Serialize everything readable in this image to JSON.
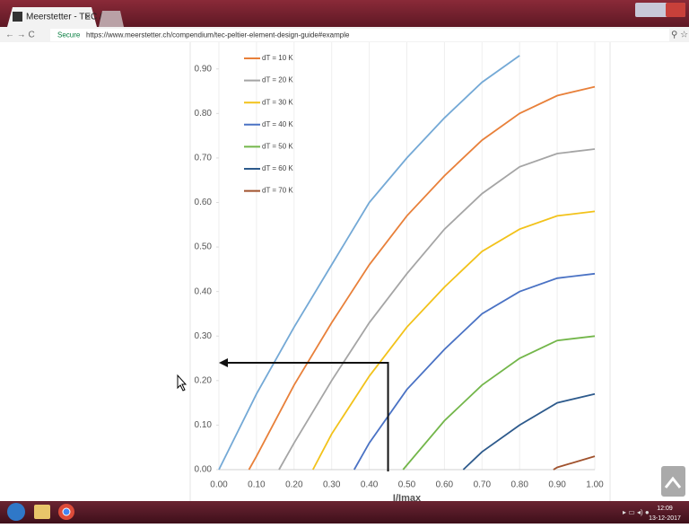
{
  "browser": {
    "tab_title": "Meerstetter - TEC / ",
    "tab_close": "×",
    "secure": "Secure",
    "url": "https://www.meerstetter.ch/compendium/tec-peltier-element-design-guide#example",
    "clock_time": "12:09",
    "clock_date": "13-12-2017"
  },
  "chart_data": {
    "type": "line",
    "x_label": "I/Imax",
    "xlim": [
      0,
      1
    ],
    "ylim": [
      0,
      0.96
    ],
    "xticks": [
      {
        "value": 0,
        "label": "0.00"
      },
      {
        "value": 0.1,
        "label": "0.10"
      },
      {
        "value": 0.2,
        "label": "0.20"
      },
      {
        "value": 0.3,
        "label": "0.30"
      },
      {
        "value": 0.4,
        "label": "0.40"
      },
      {
        "value": 0.5,
        "label": "0.50"
      },
      {
        "value": 0.6,
        "label": "0.60"
      },
      {
        "value": 0.7,
        "label": "0.70"
      },
      {
        "value": 0.8,
        "label": "0.80"
      },
      {
        "value": 0.9,
        "label": "0.90"
      },
      {
        "value": 1,
        "label": "1.00"
      }
    ],
    "yticks": [
      {
        "value": 0,
        "label": "0.00"
      },
      {
        "value": 0.1,
        "label": "0.10"
      },
      {
        "value": 0.2,
        "label": "0.20"
      },
      {
        "value": 0.3,
        "label": "0.30"
      },
      {
        "value": 0.4,
        "label": "0.40"
      },
      {
        "value": 0.5,
        "label": "0.50"
      },
      {
        "value": 0.6,
        "label": "0.60"
      },
      {
        "value": 0.7,
        "label": "0.70"
      },
      {
        "value": 0.8,
        "label": "0.80"
      },
      {
        "value": 0.9,
        "label": "0.90"
      }
    ],
    "grid": "x",
    "legend": "top-left",
    "series": [
      {
        "color": "#74a9d6",
        "x": [
          0,
          0.1,
          0.2,
          0.3,
          0.4,
          0.5,
          0.6,
          0.7,
          0.8
        ],
        "values": [
          0,
          0.17,
          0.32,
          0.46,
          0.6,
          0.7,
          0.79,
          0.87,
          0.93
        ]
      },
      {
        "name": "dT = 10 K",
        "color": "#e8803a",
        "x": [
          0.08,
          0.1,
          0.2,
          0.3,
          0.4,
          0.5,
          0.6,
          0.7,
          0.8,
          0.9,
          1
        ],
        "values": [
          0,
          0.03,
          0.19,
          0.33,
          0.46,
          0.57,
          0.66,
          0.74,
          0.8,
          0.84,
          0.86
        ]
      },
      {
        "name": "dT = 20 K",
        "color": "#a5a5a5",
        "x": [
          0.16,
          0.2,
          0.3,
          0.4,
          0.5,
          0.6,
          0.7,
          0.8,
          0.9,
          1
        ],
        "values": [
          0,
          0.06,
          0.2,
          0.33,
          0.44,
          0.54,
          0.62,
          0.68,
          0.71,
          0.72
        ]
      },
      {
        "name": "dT = 30 K",
        "color": "#f2c21a",
        "x": [
          0.25,
          0.3,
          0.4,
          0.5,
          0.6,
          0.7,
          0.8,
          0.9,
          1
        ],
        "values": [
          0,
          0.08,
          0.21,
          0.32,
          0.41,
          0.49,
          0.54,
          0.57,
          0.58
        ]
      },
      {
        "name": "dT = 40 K",
        "color": "#4a72c4",
        "x": [
          0.36,
          0.4,
          0.5,
          0.6,
          0.7,
          0.8,
          0.9,
          1
        ],
        "values": [
          0,
          0.06,
          0.18,
          0.27,
          0.35,
          0.4,
          0.43,
          0.44
        ]
      },
      {
        "name": "dT = 50 K",
        "color": "#73b64a",
        "x": [
          0.49,
          0.5,
          0.6,
          0.7,
          0.8,
          0.9,
          1
        ],
        "values": [
          0,
          0.01,
          0.11,
          0.19,
          0.25,
          0.29,
          0.3
        ]
      },
      {
        "name": "dT = 60 K",
        "color": "#2d5a8c",
        "x": [
          0.65,
          0.7,
          0.8,
          0.9,
          1
        ],
        "values": [
          0,
          0.04,
          0.1,
          0.15,
          0.17
        ]
      },
      {
        "name": "dT = 70 K",
        "color": "#a0522d",
        "x": [
          0.89,
          0.9,
          1
        ],
        "values": [
          0,
          0.005,
          0.03
        ]
      }
    ],
    "guide": {
      "x": 0.45,
      "y": 0.24
    }
  }
}
